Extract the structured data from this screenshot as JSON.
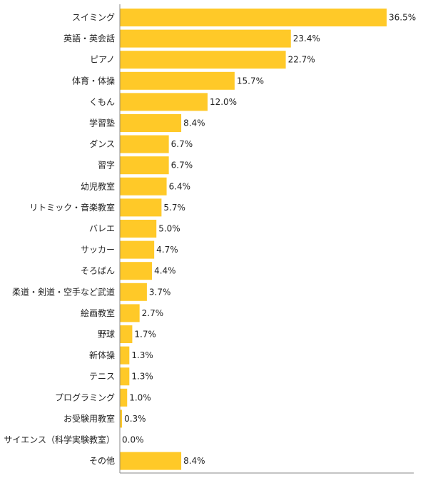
{
  "chart_data": {
    "type": "bar",
    "orientation": "horizontal",
    "categories": [
      "スイミング",
      "英語・英会話",
      "ピアノ",
      "体育・体操",
      "くもん",
      "学習塾",
      "ダンス",
      "習字",
      "幼児教室",
      "リトミック・音楽教室",
      "バレエ",
      "サッカー",
      "そろばん",
      "柔道・剣道・空手など武道",
      "絵画教室",
      "野球",
      "新体操",
      "テニス",
      "プログラミング",
      "お受験用教室",
      "サイエンス（科学実験教室）",
      "その他"
    ],
    "values": [
      36.5,
      23.4,
      22.7,
      15.7,
      12.0,
      8.4,
      6.7,
      6.7,
      6.4,
      5.7,
      5.0,
      4.7,
      4.4,
      3.7,
      2.7,
      1.7,
      1.3,
      1.3,
      1.0,
      0.3,
      0.0,
      8.4
    ],
    "value_labels": [
      "36.5%",
      "23.4%",
      "22.7%",
      "15.7%",
      "12.0%",
      "8.4%",
      "6.7%",
      "6.7%",
      "6.4%",
      "5.7%",
      "5.0%",
      "4.7%",
      "4.4%",
      "3.7%",
      "2.7%",
      "1.7%",
      "1.3%",
      "1.3%",
      "1.0%",
      "0.3%",
      "0.0%",
      "8.4%"
    ],
    "title": "",
    "xlabel": "",
    "ylabel": "",
    "xlim": [
      0,
      36.5
    ],
    "grid": false,
    "legend": "none",
    "bar_color": "#FFC928",
    "axis_color": "#888888"
  }
}
